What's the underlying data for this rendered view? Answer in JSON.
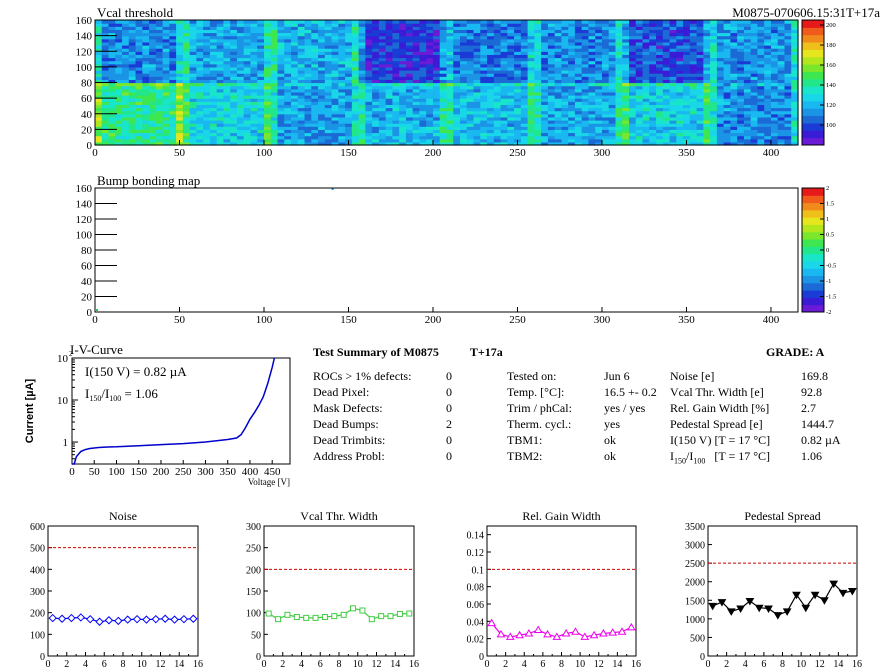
{
  "header": {
    "module_id": "M0875-070606.15:31T+17a"
  },
  "heatmaps": [
    {
      "title": "Vcal threshold",
      "type": "heatmap",
      "x_ticks": [
        "0",
        "50",
        "100",
        "150",
        "200",
        "250",
        "300",
        "350",
        "400"
      ],
      "y_ticks": [
        "0",
        "20",
        "40",
        "60",
        "80",
        "100",
        "120",
        "140",
        "160"
      ],
      "xlim": [
        0,
        416
      ],
      "ylim": [
        0,
        160
      ],
      "colorbar_ticks": [
        "100",
        "120",
        "140",
        "160",
        "180",
        "200"
      ],
      "colorbar_range": [
        80,
        205
      ],
      "roc_bottom_means": [
        142,
        128,
        115,
        120,
        122,
        118,
        127,
        112
      ],
      "roc_top_means": [
        112,
        118,
        120,
        96,
        108,
        112,
        100,
        114
      ],
      "colors": {
        "low": "#1b3bd6",
        "high": "#00e676"
      }
    },
    {
      "title": "Bump bonding map",
      "type": "heatmap",
      "x_ticks": [
        "0",
        "50",
        "100",
        "150",
        "200",
        "250",
        "300",
        "350",
        "400"
      ],
      "y_ticks": [
        "0",
        "20",
        "40",
        "60",
        "80",
        "100",
        "120",
        "140",
        "160"
      ],
      "xlim": [
        0,
        416
      ],
      "ylim": [
        0,
        160
      ],
      "colorbar_ticks": [
        "2",
        "1.5",
        "1",
        "0.5",
        "0",
        "-0.5",
        "-1",
        "-1.5",
        "-2"
      ],
      "colorbar_range": [
        -2,
        2
      ]
    }
  ],
  "iv_curve": {
    "title": "I-V-Curve",
    "ylabel": "Current [µA]",
    "xlabel": "Voltage [V]",
    "annotation_1": "I(150 V) = 0.82 µA",
    "annotation_2_pre": "I",
    "annotation_2_sub1": "150",
    "annotation_2_mid": "/I",
    "annotation_2_sub2": "100",
    "annotation_2_post": " =  1.06",
    "x_ticks": [
      "0",
      "50",
      "100",
      "150",
      "200",
      "250",
      "300",
      "350",
      "400",
      "450"
    ],
    "y_ticks": [
      "1",
      "10",
      "10"
    ],
    "y_tick_exp": "2",
    "xlim": [
      0,
      490
    ],
    "ylim_log": [
      0.3,
      100
    ],
    "color": "#0000cc",
    "voltage": [
      0,
      5,
      10,
      20,
      30,
      40,
      60,
      80,
      100,
      150,
      200,
      250,
      300,
      350,
      370,
      380,
      390,
      400,
      410,
      420,
      430,
      440,
      450,
      455
    ],
    "current": [
      0.1,
      0.3,
      0.45,
      0.6,
      0.66,
      0.7,
      0.74,
      0.76,
      0.77,
      0.82,
      0.87,
      0.92,
      1.0,
      1.15,
      1.25,
      1.5,
      2.2,
      3.5,
      5.0,
      7.5,
      12,
      25,
      60,
      100
    ]
  },
  "summary": {
    "title": "Test Summary of M0875",
    "tag": "T+17a",
    "grade_label": "GRADE:  A",
    "defects": [
      {
        "label": "ROCs > 1% defects:",
        "value": "0"
      },
      {
        "label": "Dead Pixel:",
        "value": "0"
      },
      {
        "label": "Mask Defects:",
        "value": "0"
      },
      {
        "label": "Dead Bumps:",
        "value": "2"
      },
      {
        "label": "Dead Trimbits:",
        "value": "0"
      },
      {
        "label": "Address Probl:",
        "value": "0"
      }
    ],
    "conditions": [
      {
        "label": "Tested on:",
        "value": "Jun 6"
      },
      {
        "label": "Temp. [°C]:",
        "value": "16.5 +- 0.2"
      },
      {
        "label": "Trim / phCal:",
        "value": "yes / yes"
      },
      {
        "label": "Therm. cycl.:",
        "value": "yes"
      },
      {
        "label": "TBM1:",
        "value": "ok"
      },
      {
        "label": "TBM2:",
        "value": "ok"
      }
    ],
    "results": [
      {
        "label": "Noise [e]",
        "value": "169.8"
      },
      {
        "label": "Vcal Thr. Width [e]",
        "value": "92.8"
      },
      {
        "label": "Rel. Gain Width [%]",
        "value": "2.7"
      },
      {
        "label": "Pedestal Spread [e]",
        "value": "1444.7"
      },
      {
        "label": "I(150 V) [T = 17 °C]",
        "value": "0.82 µA"
      },
      {
        "label": "I150/I100 [T = 17 °C]",
        "value": "1.06"
      }
    ],
    "results_last_label_parts": {
      "a": "I",
      "b": "150",
      "c": "/I",
      "d": "100",
      "e": "   [T = 17 °C]"
    }
  },
  "chart_data": [
    {
      "type": "line",
      "title": "Noise",
      "x": [
        0,
        1,
        2,
        3,
        4,
        5,
        6,
        7,
        8,
        9,
        10,
        11,
        12,
        13,
        14,
        15
      ],
      "values": [
        175,
        172,
        175,
        178,
        170,
        158,
        165,
        162,
        168,
        170,
        168,
        170,
        172,
        168,
        170,
        172
      ],
      "xlim": [
        0,
        16
      ],
      "ylim": [
        0,
        600
      ],
      "limit": 500,
      "x_ticks": [
        "0",
        "2",
        "4",
        "6",
        "8",
        "10",
        "12",
        "14",
        "16"
      ],
      "y_ticks": [
        "0",
        "100",
        "200",
        "300",
        "400",
        "500",
        "600"
      ],
      "color": "#0000ff",
      "marker": "diamond"
    },
    {
      "type": "line",
      "title": "Vcal Thr. Width",
      "x": [
        0,
        1,
        2,
        3,
        4,
        5,
        6,
        7,
        8,
        9,
        10,
        11,
        12,
        13,
        14,
        15
      ],
      "values": [
        98,
        85,
        95,
        90,
        88,
        88,
        90,
        92,
        95,
        110,
        105,
        85,
        92,
        92,
        97,
        98
      ],
      "xlim": [
        0,
        16
      ],
      "ylim": [
        0,
        300
      ],
      "limit": 200,
      "x_ticks": [
        "0",
        "2",
        "4",
        "6",
        "8",
        "10",
        "12",
        "14",
        "16"
      ],
      "y_ticks": [
        "0",
        "50",
        "100",
        "150",
        "200",
        "250",
        "300"
      ],
      "color": "#44cc44",
      "marker": "square"
    },
    {
      "type": "line",
      "title": "Rel. Gain Width",
      "x": [
        0,
        1,
        2,
        3,
        4,
        5,
        6,
        7,
        8,
        9,
        10,
        11,
        12,
        13,
        14,
        15
      ],
      "values": [
        0.038,
        0.025,
        0.022,
        0.024,
        0.026,
        0.03,
        0.025,
        0.022,
        0.026,
        0.028,
        0.022,
        0.024,
        0.026,
        0.027,
        0.028,
        0.033
      ],
      "xlim": [
        0,
        16
      ],
      "ylim": [
        0,
        0.15
      ],
      "limit": 0.1,
      "x_ticks": [
        "0",
        "2",
        "4",
        "6",
        "8",
        "10",
        "12",
        "14",
        "16"
      ],
      "y_ticks": [
        "0",
        "0.02",
        "0.04",
        "0.06",
        "0.08",
        "0.1",
        "0.12",
        "0.14"
      ],
      "color": "#ee00ee",
      "marker": "triangle"
    },
    {
      "type": "line",
      "title": "Pedestal Spread",
      "x": [
        0,
        1,
        2,
        3,
        4,
        5,
        6,
        7,
        8,
        9,
        10,
        11,
        12,
        13,
        14,
        15
      ],
      "values": [
        1350,
        1450,
        1200,
        1280,
        1480,
        1300,
        1280,
        1100,
        1200,
        1650,
        1300,
        1650,
        1500,
        1950,
        1700,
        1750
      ],
      "xlim": [
        0,
        16
      ],
      "ylim": [
        0,
        3500
      ],
      "limit": 2500,
      "x_ticks": [
        "0",
        "2",
        "4",
        "6",
        "8",
        "10",
        "12",
        "14",
        "16"
      ],
      "y_ticks": [
        "0",
        "500",
        "1000",
        "1500",
        "2000",
        "2500",
        "3000",
        "3500"
      ],
      "color": "#000000",
      "marker": "triangle-down"
    }
  ]
}
